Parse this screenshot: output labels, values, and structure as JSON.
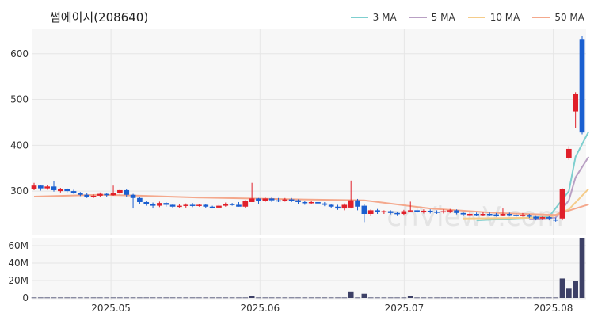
{
  "title": "썸에이지(208640)",
  "watermark": "chViewV.com",
  "legend": [
    {
      "label": "3 MA",
      "color": "#7ecfcf"
    },
    {
      "label": "5 MA",
      "color": "#b9a0c4"
    },
    {
      "label": "10 MA",
      "color": "#f5cc8a"
    },
    {
      "label": "50 MA",
      "color": "#f4a88c"
    }
  ],
  "colors": {
    "up": "#e0202a",
    "down": "#1a5fd0",
    "volume": "#3d4066",
    "background": "#f7f7f7"
  },
  "chart_data": [
    {
      "type": "candlestick",
      "title": "썸에이지(208640)",
      "x_ticks": [
        "2025.05",
        "2025.06",
        "2025.07",
        "2025.08"
      ],
      "y_ticks": [
        300,
        400,
        500,
        600
      ],
      "ylim": [
        205,
        655
      ],
      "grid": true,
      "legend_position": "top-right",
      "first_date": "2025-04-15",
      "last_date": "2025-08-07",
      "candles": [
        [
          305,
          312,
          318,
          302
        ],
        [
          312,
          306,
          314,
          301
        ],
        [
          306,
          310,
          314,
          303
        ],
        [
          310,
          302,
          321,
          299
        ],
        [
          300,
          304,
          307,
          297
        ],
        [
          304,
          300,
          306,
          297
        ],
        [
          300,
          296,
          303,
          294
        ],
        [
          296,
          292,
          298,
          289
        ],
        [
          292,
          288,
          295,
          285
        ],
        [
          288,
          290,
          293,
          285
        ],
        [
          290,
          294,
          297,
          287
        ],
        [
          294,
          291,
          296,
          288
        ],
        [
          291,
          296,
          312,
          290
        ],
        [
          296,
          302,
          304,
          292
        ],
        [
          302,
          292,
          304,
          288
        ],
        [
          292,
          285,
          294,
          262
        ],
        [
          285,
          276,
          288,
          271
        ],
        [
          276,
          272,
          278,
          268
        ],
        [
          272,
          268,
          275,
          262
        ],
        [
          268,
          274,
          277,
          265
        ],
        [
          274,
          270,
          276,
          266
        ],
        [
          270,
          266,
          272,
          263
        ],
        [
          266,
          268,
          272,
          264
        ],
        [
          268,
          270,
          273,
          264
        ],
        [
          270,
          268,
          274,
          265
        ],
        [
          268,
          270,
          272,
          266
        ],
        [
          270,
          266,
          272,
          263
        ],
        [
          266,
          264,
          268,
          262
        ],
        [
          264,
          268,
          272,
          262
        ],
        [
          268,
          272,
          275,
          266
        ],
        [
          272,
          270,
          274,
          268
        ],
        [
          270,
          266,
          276,
          266
        ],
        [
          266,
          278,
          280,
          264
        ],
        [
          276,
          284,
          318,
          276
        ],
        [
          284,
          278,
          285,
          271
        ],
        [
          278,
          284,
          287,
          276
        ],
        [
          284,
          280,
          287,
          276
        ],
        [
          280,
          278,
          285,
          276
        ],
        [
          278,
          282,
          285,
          277
        ],
        [
          282,
          280,
          285,
          276
        ],
        [
          280,
          276,
          282,
          272
        ],
        [
          276,
          274,
          278,
          270
        ],
        [
          274,
          276,
          278,
          271
        ],
        [
          276,
          273,
          278,
          270
        ],
        [
          273,
          270,
          276,
          267
        ],
        [
          270,
          266,
          272,
          263
        ],
        [
          266,
          262,
          270,
          259
        ],
        [
          262,
          270,
          273,
          258
        ],
        [
          264,
          280,
          323,
          262
        ],
        [
          280,
          266,
          283,
          258
        ],
        [
          268,
          250,
          272,
          232
        ],
        [
          250,
          258,
          260,
          246
        ],
        [
          258,
          254,
          261,
          250
        ],
        [
          254,
          256,
          258,
          250
        ],
        [
          256,
          252,
          258,
          249
        ],
        [
          252,
          250,
          255,
          247
        ],
        [
          250,
          256,
          259,
          248
        ],
        [
          256,
          258,
          277,
          254
        ],
        [
          258,
          255,
          262,
          252
        ],
        [
          255,
          257,
          260,
          251
        ],
        [
          257,
          255,
          260,
          251
        ],
        [
          255,
          254,
          258,
          250
        ],
        [
          254,
          256,
          260,
          251
        ],
        [
          256,
          258,
          261,
          252
        ],
        [
          258,
          252,
          260,
          249
        ],
        [
          252,
          249,
          255,
          246
        ],
        [
          249,
          250,
          254,
          246
        ],
        [
          250,
          248,
          253,
          245
        ],
        [
          248,
          250,
          254,
          245
        ],
        [
          250,
          249,
          253,
          246
        ],
        [
          249,
          247,
          252,
          244
        ],
        [
          247,
          250,
          262,
          245
        ],
        [
          250,
          248,
          253,
          245
        ],
        [
          248,
          246,
          251,
          243
        ],
        [
          246,
          248,
          252,
          244
        ],
        [
          248,
          244,
          250,
          241
        ],
        [
          244,
          240,
          247,
          236
        ],
        [
          240,
          243,
          246,
          237
        ],
        [
          243,
          240,
          245,
          236
        ],
        [
          238,
          236,
          242,
          233
        ],
        [
          240,
          305,
          306,
          236
        ],
        [
          372,
          392,
          398,
          368
        ],
        [
          474,
          512,
          516,
          437
        ],
        [
          632,
          428,
          638,
          424
        ]
      ],
      "ma_series": [
        {
          "name": "3 MA",
          "color": "#7ecfcf",
          "values": [
            [
              67,
              236
            ],
            [
              78,
              244
            ],
            [
              81,
              300
            ],
            [
              82,
              375
            ],
            [
              84,
              430
            ]
          ]
        },
        {
          "name": "5 MA",
          "color": "#b9a0c4",
          "values": [
            [
              75,
              238
            ],
            [
              79,
              242
            ],
            [
              81,
              280
            ],
            [
              82,
              330
            ],
            [
              84,
              375
            ]
          ]
        },
        {
          "name": "10 MA",
          "color": "#f5cc8a",
          "values": [
            [
              65,
              240
            ],
            [
              78,
              242
            ],
            [
              81,
              260
            ],
            [
              84,
              305
            ]
          ]
        },
        {
          "name": "50 MA",
          "color": "#f4a88c",
          "values": [
            [
              0,
              288
            ],
            [
              10,
              292
            ],
            [
              16,
              290
            ],
            [
              25,
              286
            ],
            [
              40,
              282
            ],
            [
              50,
              280
            ],
            [
              60,
              262
            ],
            [
              70,
              252
            ],
            [
              79,
              248
            ],
            [
              82,
              262
            ],
            [
              84,
              271
            ]
          ]
        }
      ]
    },
    {
      "type": "bar",
      "title": "",
      "y_ticks": [
        "0",
        "20M",
        "40M",
        "60M"
      ],
      "ylim": [
        0,
        65000000
      ],
      "volumes": [
        {
          "i": 33,
          "v": 2500000
        },
        {
          "i": 48,
          "v": 7000000
        },
        {
          "i": 50,
          "v": 4500000
        },
        {
          "i": 57,
          "v": 2000000
        },
        {
          "i": 80,
          "v": 21000000
        },
        {
          "i": 81,
          "v": 10000000
        },
        {
          "i": 82,
          "v": 18000000
        },
        {
          "i": 83,
          "v": 65000000
        }
      ],
      "base_volume": 500000
    }
  ]
}
